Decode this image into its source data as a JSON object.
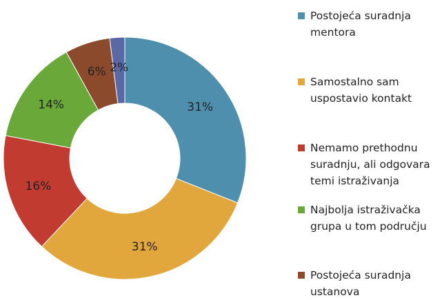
{
  "chart_data": {
    "type": "donut",
    "categories": [
      "Postojeća suradnja mentora",
      "Samostalno sam uspostavio kontakt",
      "Nemamo prethodnu suradnju, ali odgovara temi istraživanja",
      "Najbolja istraživačka grupa u tom području",
      "Postojeća suradnja ustanova",
      null
    ],
    "values": [
      31,
      31,
      16,
      14,
      6,
      2
    ],
    "value_labels": [
      "31%",
      "31%",
      "16%",
      "14%",
      "6%",
      "2%"
    ],
    "colors": [
      "#4e8fae",
      "#e2a73c",
      "#c13b31",
      "#6aa83a",
      "#8a4a2b",
      "#5a68a6"
    ]
  }
}
